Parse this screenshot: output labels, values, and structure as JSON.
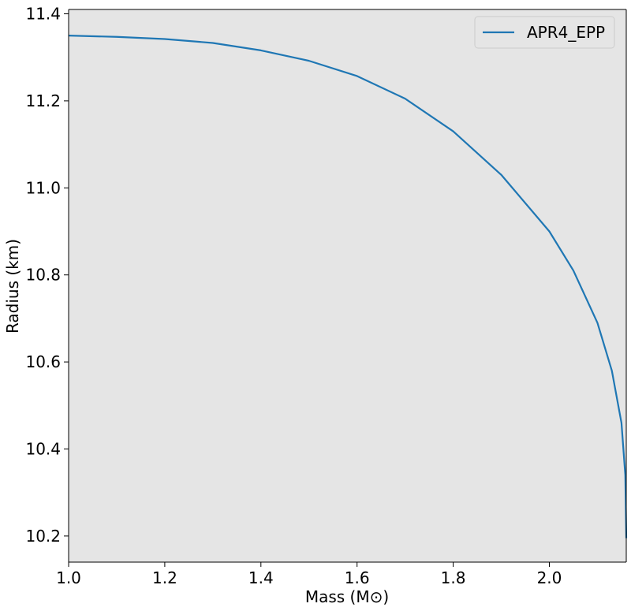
{
  "chart_data": {
    "type": "line",
    "title": "",
    "xlabel": "Mass (M⊙)",
    "ylabel": "Radius (km)",
    "xlim": [
      1.0,
      2.16
    ],
    "ylim": [
      10.14,
      11.41
    ],
    "xticks": [
      1.0,
      1.2,
      1.4,
      1.6,
      1.8,
      2.0
    ],
    "xtick_labels": [
      "1.0",
      "1.2",
      "1.4",
      "1.6",
      "1.8",
      "2.0"
    ],
    "yticks": [
      10.2,
      10.4,
      10.6,
      10.8,
      11.0,
      11.2,
      11.4
    ],
    "ytick_labels": [
      "10.2",
      "10.4",
      "10.6",
      "10.8",
      "11.0",
      "11.2",
      "11.4"
    ],
    "grid": false,
    "legend_position": "top-right",
    "background_color": "#e5e5e5",
    "series": [
      {
        "name": "APR4_EPP",
        "color": "#1f77b4",
        "x": [
          1.0,
          1.1,
          1.2,
          1.3,
          1.4,
          1.5,
          1.6,
          1.7,
          1.8,
          1.9,
          2.0,
          2.05,
          2.1,
          2.13,
          2.15,
          2.158,
          2.16
        ],
        "y": [
          11.35,
          11.347,
          11.342,
          11.333,
          11.316,
          11.292,
          11.257,
          11.205,
          11.13,
          11.03,
          10.9,
          10.81,
          10.69,
          10.58,
          10.46,
          10.34,
          10.195
        ]
      }
    ]
  }
}
